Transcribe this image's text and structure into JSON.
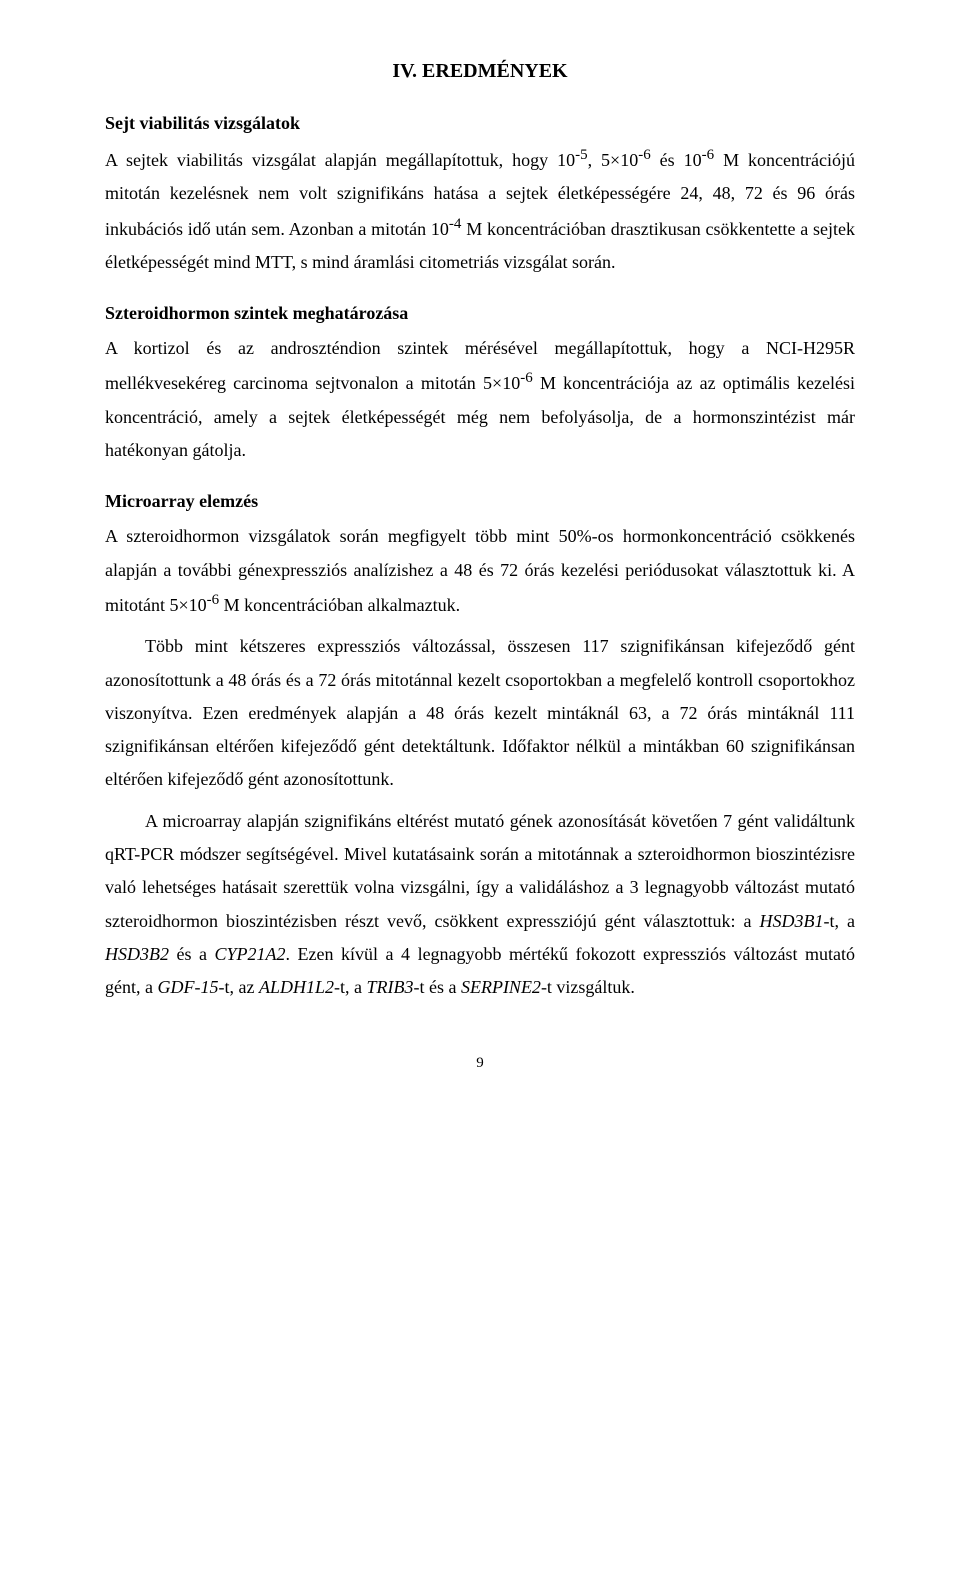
{
  "page": {
    "title": "IV. EREDMÉNYEK",
    "number": "9"
  },
  "sections": {
    "viability": {
      "heading": "Sejt viabilitás vizsgálatok",
      "p1_a": "A sejtek viabilitás vizsgálat alapján megállapítottuk, hogy 10",
      "p1_b": ", 5×10",
      "p1_c": " és 10",
      "p1_d": " M koncentrációjú mitotán kezelésnek nem volt szignifikáns hatása a sejtek életképességére 24, 48, 72 és 96 órás inkubációs idő után sem. Azonban a mitotán 10",
      "p1_e": " M koncentrációban drasztikusan csökkentette a sejtek életképességét mind MTT, s mind áramlási citometriás vizsgálat során.",
      "sup1": "-5",
      "sup2": "-6",
      "sup3": "-6",
      "sup4": "-4"
    },
    "steroid": {
      "heading": "Szteroidhormon szintek meghatározása",
      "p1_a": "A kortizol és az androszténdion szintek mérésével megállapítottuk, hogy a NCI-H295R mellékvesekéreg carcinoma sejtvonalon a mitotán 5×10",
      "p1_b": " M koncentrációja az az optimális kezelési koncentráció, amely a sejtek életképességét még nem befolyásolja, de a hormonszintézist már hatékonyan gátolja.",
      "sup1": "-6"
    },
    "microarray": {
      "heading": "Microarray elemzés",
      "p1_a": "A szteroidhormon vizsgálatok során megfigyelt több mint 50%-os hormonkoncentráció csökkenés alapján a további génexpressziós analízishez a 48 és 72 órás kezelési periódusokat választottuk ki. A mitotánt 5×10",
      "p1_b": " M koncentrációban alkalmaztuk.",
      "sup1": "-6",
      "p2": "Több mint kétszeres expressziós változással, összesen 117 szignifikánsan kifejeződő gént azonosítottunk a 48 órás és a 72 órás mitotánnal kezelt csoportokban a megfelelő kontroll csoportokhoz viszonyítva. Ezen eredmények alapján a 48 órás kezelt mintáknál 63, a 72 órás mintáknál 111 szignifikánsan eltérően kifejeződő gént detektáltunk. Időfaktor nélkül a mintákban 60 szignifikánsan eltérően kifejeződő gént azonosítottunk.",
      "p3_a": "A microarray alapján szignifikáns eltérést mutató gének azonosítását követően 7 gént validáltunk qRT-PCR módszer segítségével. Mivel kutatásaink során a mitotánnak a szteroidhormon bioszintézisre való lehetséges hatásait szerettük volna vizsgálni, így a validáláshoz a 3 legnagyobb változást mutató szteroidhormon bioszintézisben részt vevő, csökkent expressziójú gént választottuk: a ",
      "gene1": "HSD3B1",
      "p3_b": "-t, a ",
      "gene2": "HSD3B2",
      "p3_c": " és a ",
      "gene3": "CYP21A2",
      "p3_d": ". Ezen kívül a 4 legnagyobb mértékű fokozott expressziós változást mutató gént, a ",
      "gene4": "GDF-15",
      "p3_e": "-t, az ",
      "gene5": "ALDH1L2",
      "p3_f": "-t, a ",
      "gene6": "TRIB3",
      "p3_g": "-t és a ",
      "gene7": "SERPINE2",
      "p3_h": "-t vizsgáltuk."
    }
  }
}
